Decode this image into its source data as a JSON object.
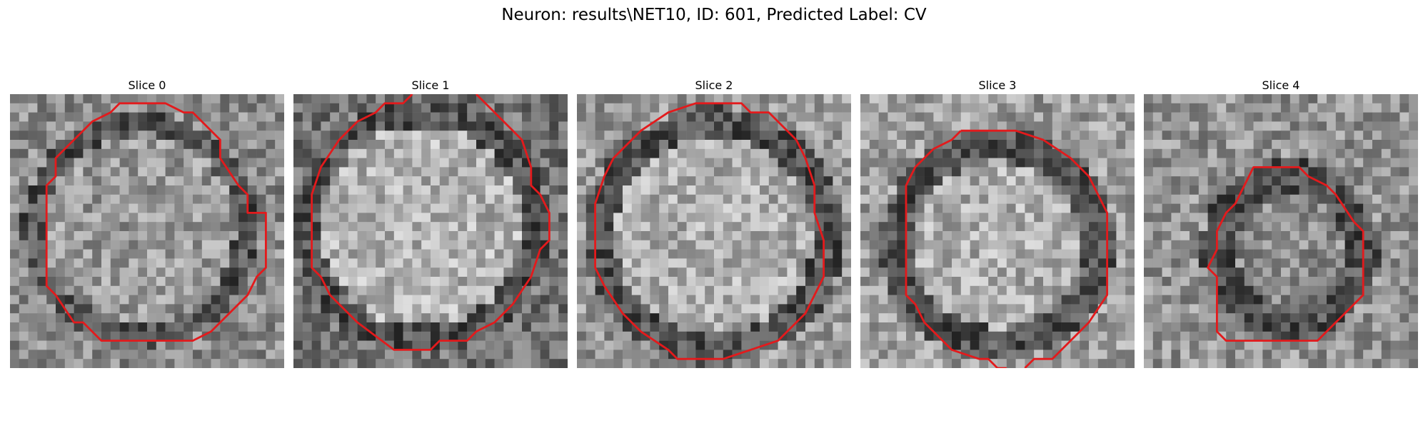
{
  "figure": {
    "title": "Neuron: results\\NET10, ID: 601, Predicted Label: CV",
    "contour_color": "#e31a1c",
    "image_colormap": "gray",
    "panels": [
      {
        "label": "Slice 0"
      },
      {
        "label": "Slice 1"
      },
      {
        "label": "Slice 2"
      },
      {
        "label": "Slice 3"
      },
      {
        "label": "Slice 4"
      }
    ]
  }
}
